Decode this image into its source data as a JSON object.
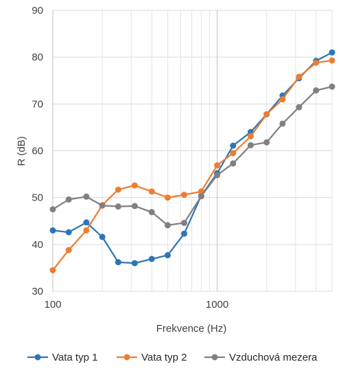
{
  "chart_data": {
    "type": "line",
    "x_scale": "log",
    "xlabel": "Frekvence (Hz)",
    "ylabel": "R (dB)",
    "xlim": [
      100,
      5000
    ],
    "ylim": [
      30,
      90
    ],
    "x_ticks": [
      {
        "value": 100,
        "label": "100"
      },
      {
        "value": 1000,
        "label": "1000"
      }
    ],
    "y_ticks": [
      30,
      40,
      50,
      60,
      70,
      80,
      90
    ],
    "grid": true,
    "legend_position": "bottom",
    "x": [
      100,
      125,
      160,
      200,
      250,
      315,
      400,
      500,
      630,
      800,
      1000,
      1250,
      1600,
      2000,
      2500,
      3150,
      4000,
      5000
    ],
    "series": [
      {
        "name": "Vata typ 1",
        "color": "#2E75B6",
        "values": [
          43.0,
          42.6,
          44.7,
          41.6,
          36.2,
          36.0,
          36.9,
          37.7,
          42.3,
          50.4,
          55.2,
          61.1,
          64.0,
          67.8,
          71.8,
          75.5,
          79.2,
          81.0
        ]
      },
      {
        "name": "Vata typ 2",
        "color": "#ED7D31",
        "values": [
          34.5,
          38.8,
          43.0,
          48.4,
          51.7,
          52.6,
          51.3,
          50.0,
          50.6,
          51.3,
          56.9,
          59.5,
          63.1,
          67.8,
          71.0,
          75.8,
          78.8,
          79.3
        ]
      },
      {
        "name": "Vzduchová mezera",
        "color": "#808080",
        "values": [
          47.5,
          49.6,
          50.2,
          48.3,
          48.1,
          48.2,
          46.9,
          44.1,
          44.6,
          50.3,
          54.8,
          57.3,
          61.2,
          61.8,
          65.8,
          69.3,
          72.9,
          73.7
        ]
      }
    ]
  }
}
